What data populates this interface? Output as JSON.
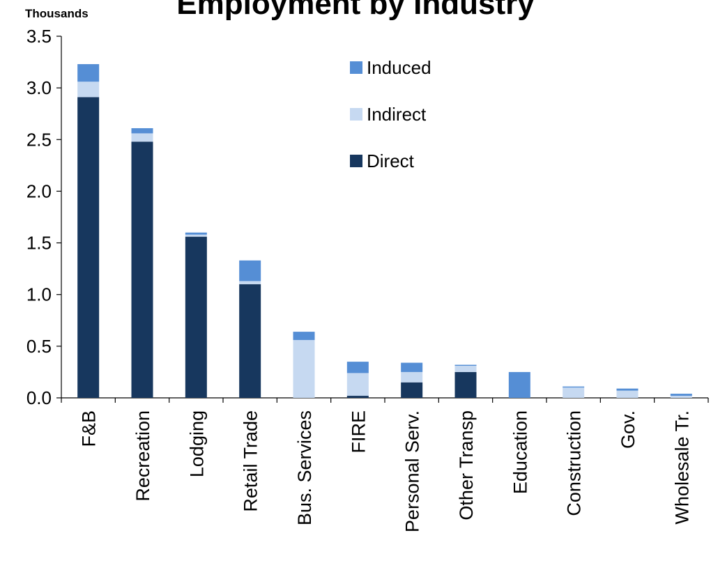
{
  "chart_data": {
    "type": "bar",
    "stacked": true,
    "title": "Employment by Industry",
    "unit_label": "Thousands",
    "categories": [
      "F&B",
      "Recreation",
      "Lodging",
      "Retail Trade",
      "Bus. Services",
      "FIRE",
      "Personal Serv.",
      "Other Transp",
      "Education",
      "Construction",
      "Gov.",
      "Wholesale Tr."
    ],
    "series": [
      {
        "name": "Direct",
        "color": "#17375e",
        "values": [
          2.91,
          2.48,
          1.56,
          1.1,
          0.0,
          0.02,
          0.15,
          0.25,
          0.0,
          0.0,
          0.0,
          0.0
        ]
      },
      {
        "name": "Indirect",
        "color": "#c6d9f1",
        "values": [
          0.15,
          0.08,
          0.02,
          0.03,
          0.56,
          0.22,
          0.1,
          0.06,
          0.0,
          0.1,
          0.07,
          0.02
        ]
      },
      {
        "name": "Induced",
        "color": "#558ed5",
        "values": [
          0.17,
          0.05,
          0.02,
          0.2,
          0.08,
          0.11,
          0.09,
          0.01,
          0.25,
          0.01,
          0.02,
          0.02
        ]
      }
    ],
    "legend_order": [
      "Induced",
      "Indirect",
      "Direct"
    ],
    "legend_position": "top-right",
    "yticks": [
      "0.0",
      "0.5",
      "1.0",
      "1.5",
      "2.0",
      "2.5",
      "3.0",
      "3.5"
    ],
    "ylim": [
      0,
      3.5
    ],
    "grid": false
  }
}
